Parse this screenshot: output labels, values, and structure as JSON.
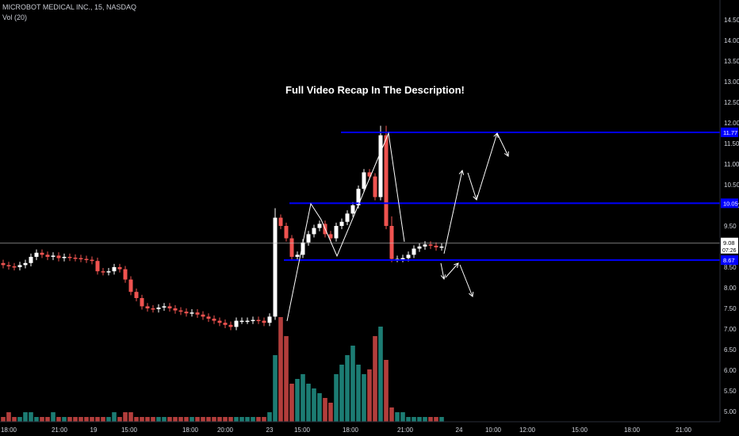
{
  "header": {
    "symbol": "MICROBOT MEDICAL INC., 15, NASDAQ",
    "volume_label": "Vol (20)"
  },
  "annotation": "Full Video Recap In The Description!",
  "colors": {
    "background": "#000000",
    "up": "#ffffff",
    "down": "#ef5350",
    "volume_up": "#26a69a",
    "volume_down": "#ef5350",
    "level_line": "#0000ff",
    "axis_text": "#d1d4dc",
    "arrow": "#ffffff"
  },
  "chart_data": {
    "type": "candlestick",
    "title": "MICROBOT MEDICAL INC., 15, NASDAQ",
    "y_axis": {
      "position": "right",
      "ticks": [
        "14.50",
        "14.00",
        "13.50",
        "13.00",
        "12.50",
        "12.00",
        "11.50",
        "11.00",
        "10.50",
        "10.00",
        "9.50",
        "9.00",
        "8.50",
        "8.00",
        "7.50",
        "7.00",
        "6.50",
        "6.00",
        "5.50",
        "5.00"
      ]
    },
    "x_axis": {
      "ticks": [
        "18:00",
        "21:00",
        "19",
        "15:00",
        "18:00",
        "20:00",
        "23",
        "15:00",
        "18:00",
        "21:00",
        "24",
        "10:00",
        "12:00",
        "15:00",
        "18:00",
        "21:00"
      ]
    },
    "levels": [
      {
        "price": 11.77,
        "label": "11.77"
      },
      {
        "price": 10.05,
        "label": "10.05"
      },
      {
        "price": 8.67,
        "label": "8.67"
      }
    ],
    "last_price": {
      "value": "9.08",
      "countdown": "07:26"
    },
    "price_series": [
      8.55,
      8.52,
      8.5,
      8.55,
      8.6,
      8.75,
      8.85,
      8.8,
      8.75,
      8.78,
      8.72,
      8.75,
      8.73,
      8.72,
      8.7,
      8.68,
      8.65,
      8.4,
      8.38,
      8.4,
      8.5,
      8.45,
      8.2,
      7.9,
      7.75,
      7.55,
      7.5,
      7.48,
      7.52,
      7.55,
      7.5,
      7.45,
      7.42,
      7.38,
      7.4,
      7.35,
      7.3,
      7.25,
      7.2,
      7.15,
      7.1,
      7.05,
      7.2,
      7.2,
      7.2,
      7.22,
      7.2,
      7.15,
      7.3,
      9.7,
      9.5,
      9.2,
      8.75,
      8.8,
      9.1,
      9.3,
      9.45,
      9.55,
      9.3,
      9.2,
      9.5,
      9.6,
      9.8,
      10.0,
      10.4,
      10.8,
      10.7,
      10.2,
      11.7,
      9.5,
      8.7,
      8.7,
      8.72,
      8.8,
      8.95,
      9.0,
      9.05,
      9.02,
      8.98,
      9.0
    ],
    "volume_series": [
      1,
      2,
      1,
      1,
      2,
      2,
      1,
      1,
      1,
      2,
      1,
      1,
      1,
      1,
      1,
      1,
      1,
      1,
      1,
      1,
      2,
      1,
      2,
      2,
      1,
      1,
      1,
      1,
      1,
      1,
      1,
      1,
      1,
      1,
      1,
      1,
      1,
      1,
      1,
      1,
      1,
      1,
      1,
      1,
      1,
      1,
      1,
      1,
      2,
      14,
      22,
      18,
      8,
      9,
      10,
      8,
      7,
      6,
      5,
      4,
      10,
      12,
      14,
      16,
      12,
      10,
      11,
      18,
      20,
      13,
      3,
      2,
      2,
      1,
      1,
      1,
      1,
      1,
      1,
      1
    ]
  }
}
